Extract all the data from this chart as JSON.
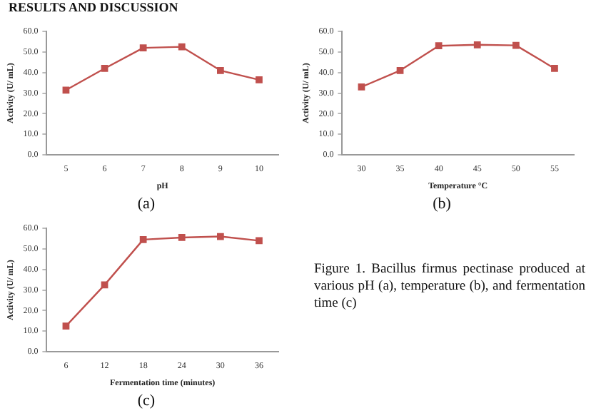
{
  "chart_data": [
    {
      "type": "line",
      "xlabel": "pH",
      "ylabel": "Activity (U/ mL)",
      "categories": [
        "5",
        "6",
        "7",
        "8",
        "9",
        "10"
      ],
      "values": [
        31.5,
        42,
        52,
        52.5,
        41,
        36.5
      ],
      "color": "#c0504d",
      "marker": "square",
      "grid": false,
      "legend": false,
      "ylim": [
        0,
        60
      ],
      "yticks": [
        {
          "value": 0,
          "label": "0.0"
        },
        {
          "value": 10,
          "label": "10.0"
        },
        {
          "value": 20,
          "label": "20.0"
        },
        {
          "value": 30,
          "label": "30.0"
        },
        {
          "value": 40,
          "label": "40.0"
        },
        {
          "value": 50,
          "label": "50.0"
        },
        {
          "value": 60,
          "label": "60.0"
        }
      ],
      "annotations": [
        "RESULTS AND DISCUSSION",
        "(a)"
      ]
    },
    {
      "type": "line",
      "xlabel": "Temperature °C",
      "ylabel": "Activity (U/ mL)",
      "categories": [
        "30",
        "35",
        "40",
        "45",
        "50",
        "55"
      ],
      "values": [
        33,
        41,
        53,
        53.5,
        53.2,
        42
      ],
      "color": "#c0504d",
      "marker": "square",
      "grid": false,
      "legend": false,
      "ylim": [
        0,
        60
      ],
      "yticks": [
        {
          "value": 0,
          "label": "0.0"
        },
        {
          "value": 10,
          "label": "10.0"
        },
        {
          "value": 20,
          "label": "20.0"
        },
        {
          "value": 30,
          "label": "30.0"
        },
        {
          "value": 40,
          "label": "40.0"
        },
        {
          "value": 50,
          "label": "50.0"
        },
        {
          "value": 60,
          "label": "60.0"
        }
      ],
      "annotations": [
        "(b)"
      ]
    },
    {
      "type": "line",
      "xlabel": "Fermentation time (minutes)",
      "ylabel": "Activity (U/ mL)",
      "categories": [
        "6",
        "12",
        "18",
        "24",
        "30",
        "36"
      ],
      "values": [
        12.5,
        32.5,
        54.5,
        55.5,
        56,
        54
      ],
      "color": "#c0504d",
      "marker": "square",
      "grid": false,
      "legend": false,
      "ylim": [
        0,
        60
      ],
      "yticks": [
        {
          "value": 0,
          "label": "0.0"
        },
        {
          "value": 10,
          "label": "10.0"
        },
        {
          "value": 20,
          "label": "20.0"
        },
        {
          "value": 30,
          "label": "30.0"
        },
        {
          "value": 40,
          "label": "40.0"
        },
        {
          "value": 50,
          "label": "50.0"
        },
        {
          "value": 60,
          "label": "60.0"
        }
      ],
      "annotations": [
        "(c)",
        "Figure 1. Bacillus firmus pectinase produced at various pH (a), temperature (b), and fermentation time (c)"
      ]
    }
  ]
}
